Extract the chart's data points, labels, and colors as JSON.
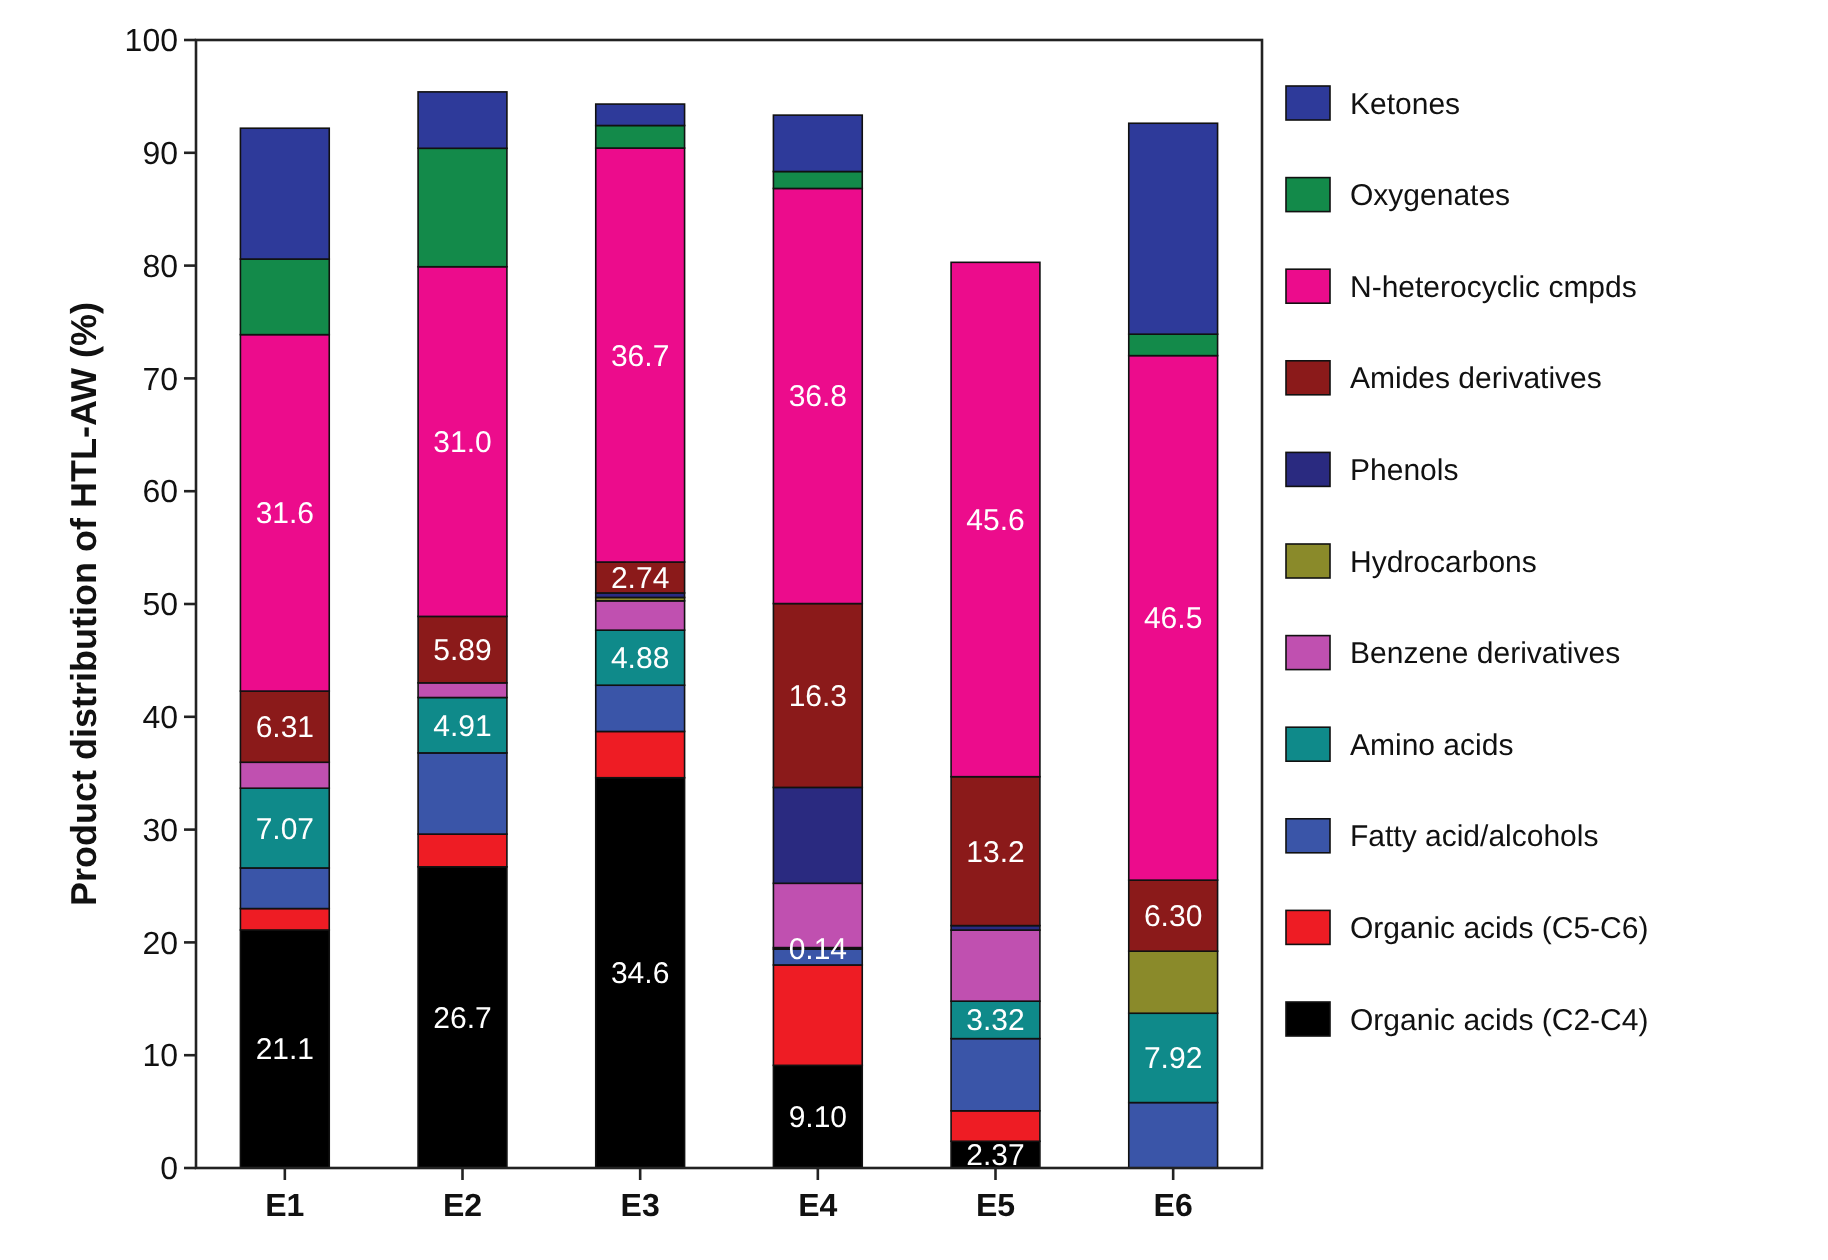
{
  "chart_data": {
    "type": "bar",
    "stacked": true,
    "ylabel": "Product distribution of HTL-AW (%)",
    "categories": [
      "E1",
      "E2",
      "E3",
      "E4",
      "E5",
      "E6"
    ],
    "ylim": [
      0,
      100
    ],
    "yticks": [
      0,
      10,
      20,
      30,
      40,
      50,
      60,
      70,
      80,
      90,
      100
    ],
    "grid": false,
    "legend": "right",
    "series": [
      {
        "name": "Organic acids (C2-C4)",
        "color": "#000000",
        "values": [
          21.1,
          26.7,
          34.6,
          9.1,
          2.37,
          0
        ],
        "value_labels": [
          "21.1",
          "26.7",
          "34.6",
          "9.10",
          "2.37",
          null
        ]
      },
      {
        "name": "Organic acids (C5-C6)",
        "color": "#ee1c24",
        "values": [
          1.9,
          2.9,
          4.1,
          8.9,
          2.7,
          0
        ],
        "value_labels": [
          null,
          null,
          null,
          null,
          null,
          null
        ]
      },
      {
        "name": "Fatty acid/alcohols",
        "color": "#3a55a8",
        "values": [
          3.6,
          7.2,
          4.1,
          1.4,
          6.4,
          5.8
        ],
        "value_labels": [
          null,
          null,
          null,
          null,
          null,
          null
        ]
      },
      {
        "name": "Amino acids",
        "color": "#0f8a8a",
        "values": [
          7.07,
          4.91,
          4.88,
          0.14,
          3.32,
          7.92
        ],
        "value_labels": [
          "7.07",
          "4.91",
          "4.88",
          "0.14",
          "3.32",
          "7.92"
        ]
      },
      {
        "name": "Benzene derivatives",
        "color": "#c050b0",
        "values": [
          2.3,
          1.3,
          2.6,
          5.7,
          6.3,
          0
        ],
        "value_labels": [
          null,
          null,
          null,
          null,
          null,
          null
        ]
      },
      {
        "name": "Hydrocarbons",
        "color": "#8a8a2a",
        "values": [
          0,
          0,
          0.3,
          0,
          0,
          5.5
        ],
        "value_labels": [
          null,
          null,
          null,
          null,
          null,
          null
        ]
      },
      {
        "name": "Phenols",
        "color": "#2a2a80",
        "values": [
          0,
          0,
          0.4,
          8.5,
          0.4,
          0
        ],
        "value_labels": [
          null,
          null,
          null,
          null,
          null,
          null
        ]
      },
      {
        "name": "Amides derivatives",
        "color": "#8b1a1a",
        "values": [
          6.31,
          5.89,
          2.74,
          16.3,
          13.2,
          6.3
        ],
        "value_labels": [
          "6.31",
          "5.89",
          "2.74",
          "16.3",
          "13.2",
          "6.30"
        ]
      },
      {
        "name": "N-heterocyclic cmpds",
        "color": "#ec0c8c",
        "values": [
          31.6,
          31.0,
          36.7,
          36.8,
          45.6,
          46.5
        ],
        "value_labels": [
          "31.6",
          "31.0",
          "36.7",
          "36.8",
          "45.6",
          "46.5"
        ]
      },
      {
        "name": "Oxygenates",
        "color": "#138a4a",
        "values": [
          6.7,
          10.5,
          2.0,
          1.5,
          0,
          1.9
        ],
        "value_labels": [
          null,
          null,
          null,
          null,
          null,
          null
        ]
      },
      {
        "name": "Ketones",
        "color": "#2e3a9a",
        "values": [
          11.6,
          5.0,
          1.9,
          5.0,
          0,
          18.7
        ],
        "value_labels": [
          null,
          null,
          null,
          null,
          null,
          null
        ]
      }
    ]
  }
}
